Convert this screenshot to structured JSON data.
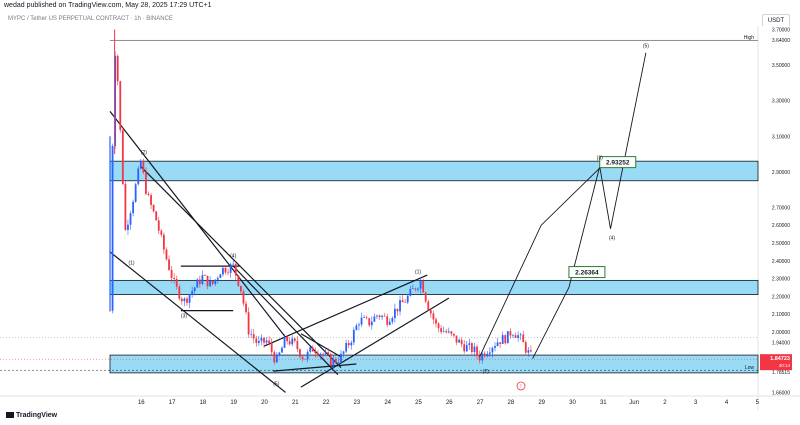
{
  "header": {
    "published": "wedad published on TradingView.com, May 28, 2025 17:29 UTC+1"
  },
  "symbol_title": "MYPC / Tether US PERPETUAL CONTRACT · 1h · BINANCE",
  "currency": "USDT",
  "footer_logo": "TradingView",
  "colors": {
    "up": "#2962ff",
    "down": "#f23645",
    "zone": "#7fd1f2",
    "accent_box": "#2e7d32",
    "price": "#f23645"
  },
  "chart_data": {
    "type": "candlestick",
    "title": "",
    "x_ticks": [
      "16",
      "17",
      "18",
      "19",
      "20",
      "21",
      "22",
      "23",
      "24",
      "25",
      "26",
      "27",
      "28",
      "29",
      "30",
      "31",
      "Jun",
      "2",
      "3",
      "4",
      "5"
    ],
    "y_ticks": [
      "3.70000",
      "3.64000",
      "3.50000",
      "3.30000",
      "3.10000",
      "2.90000",
      "2.70000",
      "2.60000",
      "2.50000",
      "2.40000",
      "2.30000",
      "2.20000",
      "2.10000",
      "2.00000",
      "1.94000",
      "1.84723",
      "1.78515",
      "1.66000"
    ],
    "ylim": [
      1.64,
      3.72
    ],
    "price_path": [
      [
        15.0,
        2.12
      ],
      [
        15.08,
        3.04
      ],
      [
        15.18,
        3.66
      ],
      [
        15.32,
        3.17
      ],
      [
        15.5,
        2.57
      ],
      [
        15.75,
        2.75
      ],
      [
        16.0,
        2.96
      ],
      [
        16.2,
        2.77
      ],
      [
        16.5,
        2.63
      ],
      [
        16.8,
        2.43
      ],
      [
        17.1,
        2.26
      ],
      [
        17.4,
        2.17
      ],
      [
        17.7,
        2.24
      ],
      [
        18.0,
        2.31
      ],
      [
        18.3,
        2.26
      ],
      [
        18.6,
        2.35
      ],
      [
        19.0,
        2.37
      ],
      [
        19.25,
        2.24
      ],
      [
        19.5,
        2.01
      ],
      [
        19.8,
        1.93
      ],
      [
        20.1,
        1.95
      ],
      [
        20.4,
        1.83
      ],
      [
        20.7,
        1.96
      ],
      [
        21.0,
        1.93
      ],
      [
        21.3,
        1.85
      ],
      [
        21.6,
        1.91
      ],
      [
        21.9,
        1.88
      ],
      [
        22.2,
        1.83
      ],
      [
        22.5,
        1.86
      ],
      [
        22.8,
        1.95
      ],
      [
        23.1,
        2.07
      ],
      [
        23.4,
        2.05
      ],
      [
        23.7,
        2.1
      ],
      [
        24.0,
        2.07
      ],
      [
        24.3,
        2.13
      ],
      [
        24.6,
        2.18
      ],
      [
        24.9,
        2.25
      ],
      [
        25.1,
        2.29
      ],
      [
        25.3,
        2.16
      ],
      [
        25.6,
        2.03
      ],
      [
        25.9,
        2.0
      ],
      [
        26.2,
        1.96
      ],
      [
        26.5,
        1.92
      ],
      [
        26.8,
        1.9
      ],
      [
        27.0,
        1.86
      ],
      [
        27.3,
        1.91
      ],
      [
        27.6,
        1.95
      ],
      [
        27.9,
        1.97
      ],
      [
        28.05,
        2.01
      ],
      [
        28.3,
        1.97
      ],
      [
        28.55,
        1.89
      ],
      [
        28.72,
        1.85
      ]
    ],
    "zones": [
      {
        "y_top": 2.96,
        "y_bottom": 2.85
      },
      {
        "y_top": 2.29,
        "y_bottom": 2.21
      },
      {
        "y_top": 1.87,
        "y_bottom": 1.77
      }
    ],
    "high_line": {
      "label": "High",
      "y": 3.64
    },
    "low_line": {
      "label": "Low",
      "y": 1.785
    },
    "price_line": {
      "label": "1.84723",
      "sub": "30:14",
      "y": 1.847
    },
    "callouts": [
      {
        "text": "2.93252",
        "x": 30.9,
        "y": 2.952
      },
      {
        "text": "2.26364",
        "x": 29.9,
        "y": 2.334
      }
    ],
    "projection": [
      [
        28.72,
        1.85
      ],
      [
        29.9,
        2.25
      ],
      [
        30.9,
        2.93
      ],
      [
        31.25,
        2.58
      ],
      [
        32.4,
        3.57
      ]
    ],
    "projection_alt": [
      [
        27.0,
        1.86
      ],
      [
        29.0,
        2.6
      ],
      [
        30.95,
        2.93
      ]
    ],
    "wave_labels": [
      {
        "text": "(2)",
        "x": 16.1,
        "y": 3.0
      },
      {
        "text": "(1)",
        "x": 15.7,
        "y": 2.38
      },
      {
        "text": "(3)",
        "x": 17.4,
        "y": 2.08
      },
      {
        "text": "(4)",
        "x": 19.0,
        "y": 2.42
      },
      {
        "text": "(5)",
        "x": 20.4,
        "y": 1.7
      },
      {
        "text": "(1)",
        "x": 25.0,
        "y": 2.33
      },
      {
        "text": "(2)",
        "x": 27.2,
        "y": 1.77
      },
      {
        "text": "(3)",
        "x": 30.9,
        "y": 2.97
      },
      {
        "text": "(4)",
        "x": 31.3,
        "y": 2.52
      },
      {
        "text": "(5)",
        "x": 32.4,
        "y": 3.6
      }
    ],
    "trend_lines": [
      [
        [
          15.0,
          3.24
        ],
        [
          20.7,
          1.97
        ]
      ],
      [
        [
          15.0,
          2.45
        ],
        [
          20.7,
          1.66
        ]
      ],
      [
        [
          16.0,
          2.93
        ],
        [
          22.5,
          1.8
        ]
      ],
      [
        [
          19.0,
          2.37
        ],
        [
          22.4,
          1.76
        ]
      ],
      [
        [
          20.0,
          1.92
        ],
        [
          25.3,
          2.32
        ]
      ],
      [
        [
          21.2,
          1.69
        ],
        [
          26.0,
          2.19
        ]
      ],
      [
        [
          20.3,
          1.78
        ],
        [
          23.0,
          1.82
        ]
      ],
      [
        [
          17.3,
          2.37
        ],
        [
          19.2,
          2.37
        ]
      ],
      [
        [
          17.3,
          2.12
        ],
        [
          19.0,
          2.12
        ]
      ],
      [
        [
          21.2,
          1.99
        ],
        [
          22.5,
          1.86
        ]
      ]
    ]
  }
}
